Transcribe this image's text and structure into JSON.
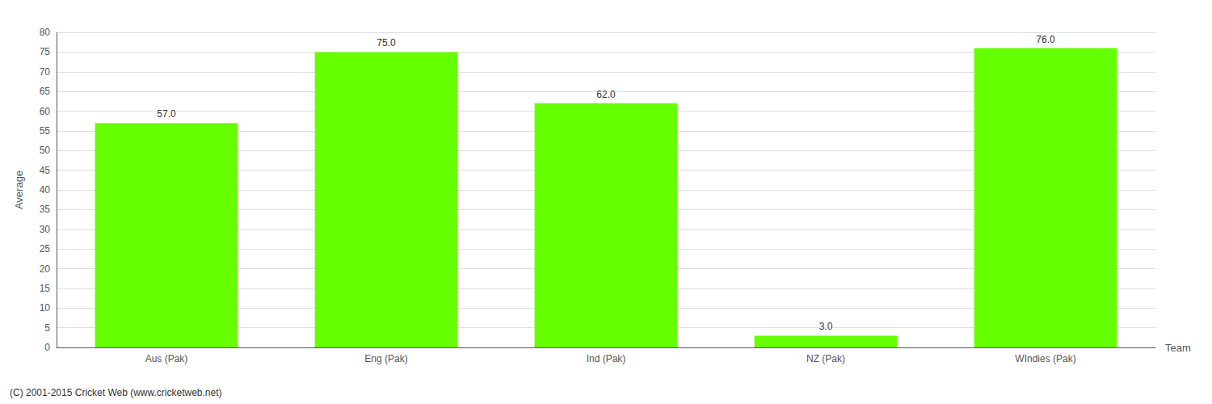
{
  "chart_data": {
    "type": "bar",
    "categories": [
      "Aus (Pak)",
      "Eng (Pak)",
      "Ind (Pak)",
      "NZ (Pak)",
      "WIndies (Pak)"
    ],
    "values": [
      57.0,
      75.0,
      62.0,
      3.0,
      76.0
    ],
    "value_labels": [
      "57.0",
      "75.0",
      "62.0",
      "3.0",
      "76.0"
    ],
    "data_labels": true,
    "color": "#66ff00",
    "xlabel": "Team",
    "ylabel": "Average",
    "ylim": [
      0,
      80
    ],
    "yticks": [
      0,
      5,
      10,
      15,
      20,
      25,
      30,
      35,
      40,
      45,
      50,
      55,
      60,
      65,
      70,
      75,
      80
    ],
    "grid": true,
    "annotations": [
      "(C) 2001-2015 Cricket Web (www.cricketweb.net)"
    ]
  }
}
